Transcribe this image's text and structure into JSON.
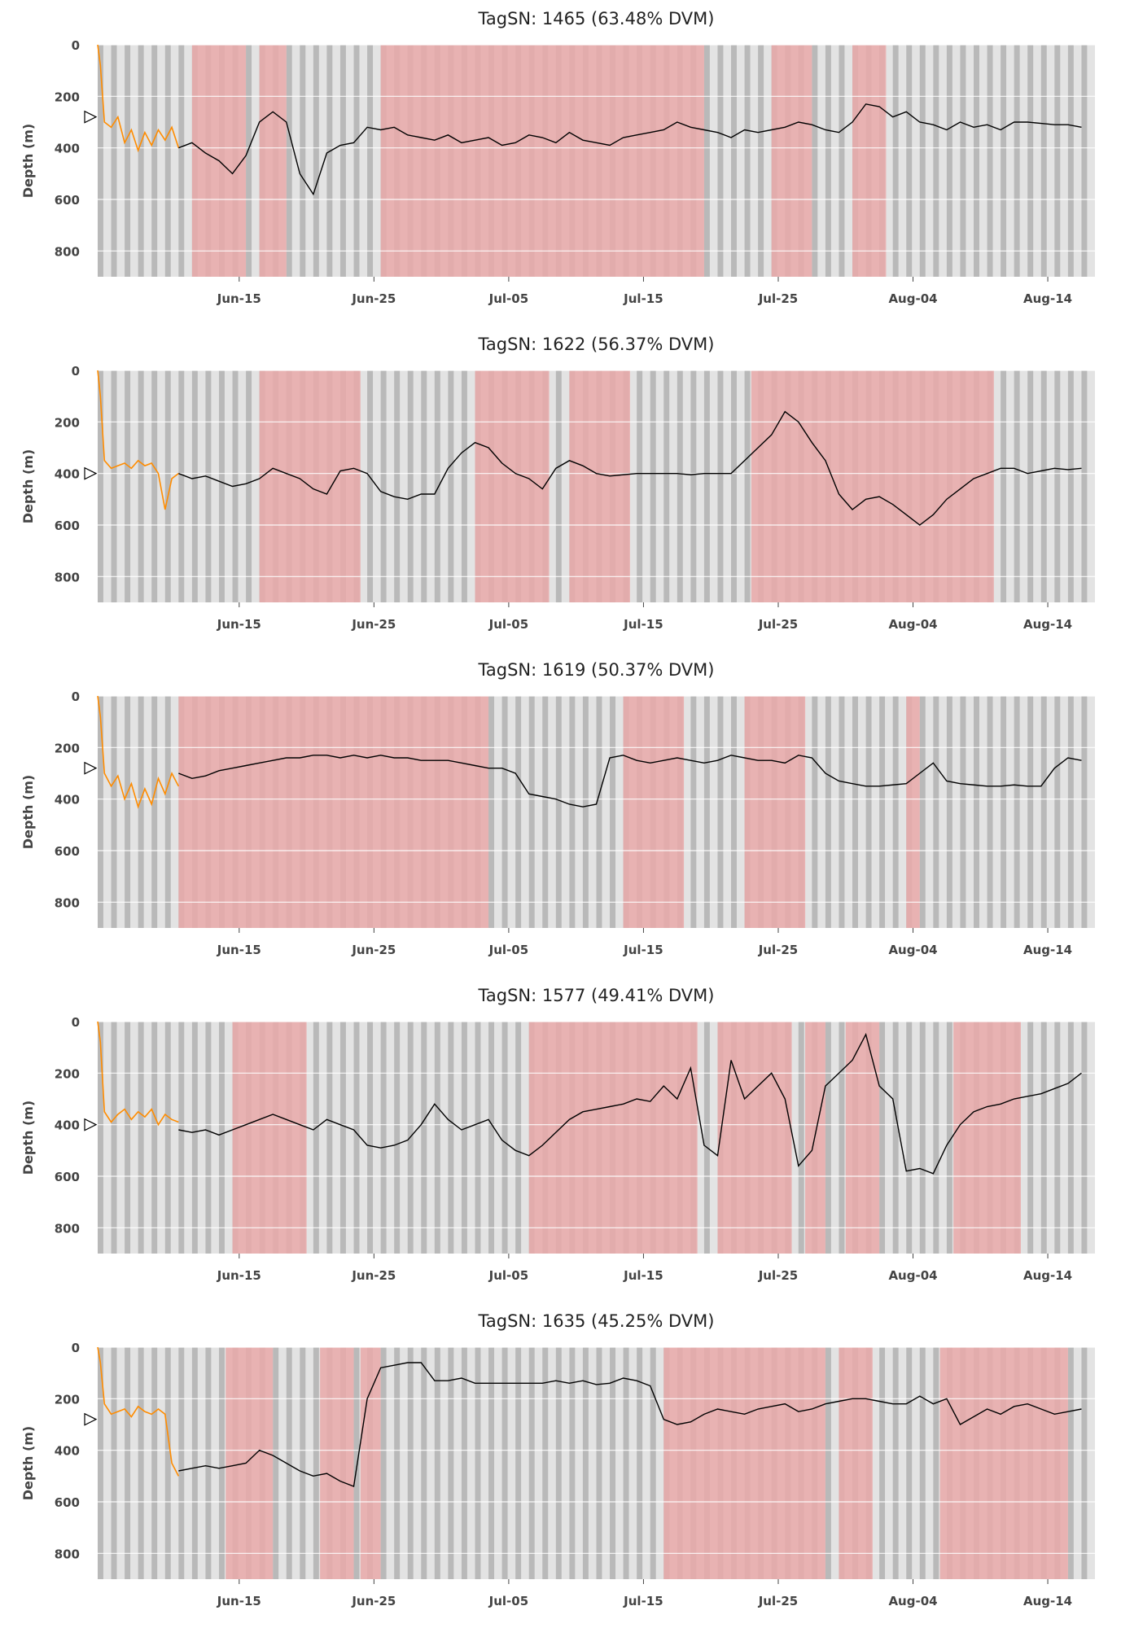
{
  "colors": {
    "background": "#ffffff",
    "night_stripe": "#b9b9b9",
    "day_stripe": "#e3e3e3",
    "dvm_shade": "#e9a9a9",
    "pre_release_trace": "#ff8c00",
    "trace": "#000000",
    "grid": "#ffffff",
    "text": "#444444"
  },
  "chart_data": [
    {
      "type": "line",
      "title": "TagSN: 1465 (63.48% DVM)",
      "ylabel": "Depth (m)",
      "ylim": [
        900,
        0
      ],
      "y_inverted": true,
      "yticks": [
        0,
        200,
        400,
        600,
        800
      ],
      "xticks": [
        "Jun-15",
        "Jun-25",
        "Jul-05",
        "Jul-15",
        "Jul-25",
        "Aug-04",
        "Aug-14"
      ],
      "marker_depth": 280,
      "pre_release": {
        "x": [
          0,
          0.2,
          0.5,
          1,
          1.5,
          2,
          2.5,
          3,
          3.5,
          4,
          4.5,
          5,
          5.5,
          6
        ],
        "depth": [
          0,
          80,
          300,
          320,
          280,
          380,
          330,
          410,
          340,
          390,
          330,
          370,
          320,
          400
        ]
      },
      "trace": {
        "x": [
          6,
          7,
          8,
          9,
          10,
          11,
          12,
          13,
          14,
          15,
          16,
          17,
          18,
          19,
          20,
          21,
          22,
          23,
          24,
          25,
          26,
          27,
          28,
          29,
          30,
          31,
          32,
          33,
          34,
          35,
          36,
          37,
          38,
          39,
          40,
          41,
          42,
          43,
          44,
          45,
          46,
          47,
          48,
          49,
          50,
          51,
          52,
          53,
          54,
          55,
          56,
          57,
          58,
          59,
          60,
          61,
          62,
          63,
          64,
          65,
          66,
          67,
          68,
          69,
          70,
          71,
          72,
          73
        ],
        "depth": [
          400,
          380,
          420,
          450,
          500,
          430,
          300,
          260,
          300,
          500,
          580,
          420,
          390,
          380,
          320,
          330,
          320,
          350,
          360,
          370,
          350,
          380,
          370,
          360,
          390,
          380,
          350,
          360,
          380,
          340,
          370,
          380,
          390,
          360,
          350,
          340,
          330,
          300,
          320,
          330,
          340,
          360,
          330,
          340,
          330,
          320,
          300,
          310,
          330,
          340,
          300,
          230,
          240,
          280,
          260,
          300,
          310,
          330,
          300,
          320,
          310,
          330,
          300,
          300,
          305,
          310,
          310,
          320
        ]
      },
      "dvm_periods": [
        [
          7,
          11
        ],
        [
          12,
          14
        ],
        [
          21,
          45
        ],
        [
          50,
          53
        ],
        [
          56,
          58.5
        ]
      ]
    },
    {
      "type": "line",
      "title": "TagSN: 1622 (56.37% DVM)",
      "ylabel": "Depth (m)",
      "ylim": [
        900,
        0
      ],
      "y_inverted": true,
      "yticks": [
        0,
        200,
        400,
        600,
        800
      ],
      "xticks": [
        "Jun-15",
        "Jun-25",
        "Jul-05",
        "Jul-15",
        "Jul-25",
        "Aug-04",
        "Aug-14"
      ],
      "marker_depth": 400,
      "pre_release": {
        "x": [
          0,
          0.2,
          0.5,
          1,
          1.5,
          2,
          2.5,
          3,
          3.5,
          4,
          4.5,
          5,
          5.5,
          6
        ],
        "depth": [
          0,
          100,
          350,
          380,
          370,
          360,
          380,
          350,
          370,
          360,
          400,
          540,
          420,
          400
        ]
      },
      "trace": {
        "x": [
          6,
          7,
          8,
          9,
          10,
          11,
          12,
          13,
          14,
          15,
          16,
          17,
          18,
          19,
          20,
          21,
          22,
          23,
          24,
          25,
          26,
          27,
          28,
          29,
          30,
          31,
          32,
          33,
          34,
          35,
          36,
          37,
          38,
          39,
          40,
          41,
          42,
          43,
          44,
          45,
          46,
          47,
          48,
          49,
          50,
          51,
          52,
          53,
          54,
          55,
          56,
          57,
          58,
          59,
          60,
          61,
          62,
          63,
          64,
          65,
          66,
          67,
          68,
          69,
          70,
          71,
          72,
          73
        ],
        "depth": [
          400,
          420,
          410,
          430,
          450,
          440,
          420,
          380,
          400,
          420,
          460,
          480,
          390,
          380,
          400,
          470,
          490,
          500,
          480,
          480,
          380,
          320,
          280,
          300,
          360,
          400,
          420,
          460,
          380,
          350,
          370,
          400,
          410,
          405,
          400,
          400,
          400,
          400,
          405,
          400,
          400,
          400,
          350,
          300,
          250,
          160,
          200,
          280,
          350,
          480,
          540,
          500,
          490,
          520,
          560,
          600,
          560,
          500,
          460,
          420,
          400,
          380,
          380,
          400,
          390,
          380,
          385,
          380
        ]
      },
      "dvm_periods": [
        [
          12,
          19.5
        ],
        [
          28,
          33.5
        ],
        [
          35,
          39.5
        ],
        [
          48.5,
          66.5
        ]
      ]
    },
    {
      "type": "line",
      "title": "TagSN: 1619 (50.37% DVM)",
      "ylabel": "Depth (m)",
      "ylim": [
        900,
        0
      ],
      "y_inverted": true,
      "yticks": [
        0,
        200,
        400,
        600,
        800
      ],
      "xticks": [
        "Jun-15",
        "Jun-25",
        "Jul-05",
        "Jul-15",
        "Jul-25",
        "Aug-04",
        "Aug-14"
      ],
      "marker_depth": 280,
      "pre_release": {
        "x": [
          0,
          0.2,
          0.5,
          1,
          1.5,
          2,
          2.5,
          3,
          3.5,
          4,
          4.5,
          5,
          5.5,
          6
        ],
        "depth": [
          0,
          80,
          300,
          350,
          310,
          400,
          340,
          430,
          360,
          420,
          320,
          380,
          300,
          350
        ]
      },
      "trace": {
        "x": [
          6,
          7,
          8,
          9,
          10,
          11,
          12,
          13,
          14,
          15,
          16,
          17,
          18,
          19,
          20,
          21,
          22,
          23,
          24,
          25,
          26,
          27,
          28,
          29,
          30,
          31,
          32,
          33,
          34,
          35,
          36,
          37,
          38,
          39,
          40,
          41,
          42,
          43,
          44,
          45,
          46,
          47,
          48,
          49,
          50,
          51,
          52,
          53,
          54,
          55,
          56,
          57,
          58,
          59,
          60,
          61,
          62,
          63,
          64,
          65,
          66,
          67,
          68,
          69,
          70,
          71,
          72,
          73
        ],
        "depth": [
          300,
          320,
          310,
          290,
          280,
          270,
          260,
          250,
          240,
          240,
          230,
          230,
          240,
          230,
          240,
          230,
          240,
          240,
          250,
          250,
          250,
          260,
          270,
          280,
          280,
          300,
          380,
          390,
          400,
          420,
          430,
          420,
          240,
          230,
          250,
          260,
          250,
          240,
          250,
          260,
          250,
          230,
          240,
          250,
          250,
          260,
          230,
          240,
          300,
          330,
          340,
          350,
          350,
          345,
          340,
          300,
          260,
          330,
          340,
          345,
          350,
          350,
          345,
          350,
          350,
          280,
          240,
          250
        ]
      },
      "dvm_periods": [
        [
          6,
          29
        ],
        [
          39,
          43.5
        ],
        [
          48,
          52.5
        ],
        [
          60,
          61
        ]
      ]
    },
    {
      "type": "line",
      "title": "TagSN: 1577 (49.41% DVM)",
      "ylabel": "Depth (m)",
      "ylim": [
        900,
        0
      ],
      "y_inverted": true,
      "yticks": [
        0,
        200,
        400,
        600,
        800
      ],
      "xticks": [
        "Jun-15",
        "Jun-25",
        "Jul-05",
        "Jul-15",
        "Jul-25",
        "Aug-04",
        "Aug-14"
      ],
      "marker_depth": 400,
      "pre_release": {
        "x": [
          0,
          0.2,
          0.5,
          1,
          1.5,
          2,
          2.5,
          3,
          3.5,
          4,
          4.5,
          5,
          5.5,
          6
        ],
        "depth": [
          0,
          80,
          350,
          390,
          360,
          340,
          380,
          350,
          370,
          340,
          400,
          360,
          380,
          390
        ]
      },
      "trace": {
        "x": [
          6,
          7,
          8,
          9,
          10,
          11,
          12,
          13,
          14,
          15,
          16,
          17,
          18,
          19,
          20,
          21,
          22,
          23,
          24,
          25,
          26,
          27,
          28,
          29,
          30,
          31,
          32,
          33,
          34,
          35,
          36,
          37,
          38,
          39,
          40,
          41,
          42,
          43,
          44,
          45,
          46,
          47,
          48,
          49,
          50,
          51,
          52,
          53,
          54,
          55,
          56,
          57,
          58,
          59,
          60,
          61,
          62,
          63,
          64,
          65,
          66,
          67,
          68,
          69,
          70,
          71,
          72,
          73
        ],
        "depth": [
          420,
          430,
          420,
          440,
          420,
          400,
          380,
          360,
          380,
          400,
          420,
          380,
          400,
          420,
          480,
          490,
          480,
          460,
          400,
          320,
          380,
          420,
          400,
          380,
          460,
          500,
          520,
          480,
          430,
          380,
          350,
          340,
          330,
          320,
          300,
          310,
          250,
          300,
          180,
          480,
          520,
          150,
          300,
          250,
          200,
          300,
          560,
          500,
          250,
          200,
          150,
          50,
          250,
          300,
          580,
          570,
          590,
          480,
          400,
          350,
          330,
          320,
          300,
          290,
          280,
          260,
          240,
          200
        ]
      },
      "dvm_periods": [
        [
          10,
          15.5
        ],
        [
          32,
          44.5
        ],
        [
          46,
          51.5
        ],
        [
          52.5,
          54
        ],
        [
          55.5,
          58
        ],
        [
          63.5,
          68.5
        ]
      ]
    },
    {
      "type": "line",
      "title": "TagSN: 1635 (45.25% DVM)",
      "ylabel": "Depth (m)",
      "ylim": [
        900,
        0
      ],
      "y_inverted": true,
      "yticks": [
        0,
        200,
        400,
        600,
        800
      ],
      "xticks": [
        "Jun-15",
        "Jun-25",
        "Jul-05",
        "Jul-15",
        "Jul-25",
        "Aug-04",
        "Aug-14"
      ],
      "marker_depth": 280,
      "pre_release": {
        "x": [
          0,
          0.2,
          0.5,
          1,
          1.5,
          2,
          2.5,
          3,
          3.5,
          4,
          4.5,
          5,
          5.5,
          6
        ],
        "depth": [
          0,
          60,
          220,
          260,
          250,
          240,
          270,
          230,
          250,
          260,
          240,
          260,
          450,
          500
        ]
      },
      "trace": {
        "x": [
          6,
          7,
          8,
          9,
          10,
          11,
          12,
          13,
          14,
          15,
          16,
          17,
          18,
          19,
          20,
          21,
          22,
          23,
          24,
          25,
          26,
          27,
          28,
          29,
          30,
          31,
          32,
          33,
          34,
          35,
          36,
          37,
          38,
          39,
          40,
          41,
          42,
          43,
          44,
          45,
          46,
          47,
          48,
          49,
          50,
          51,
          52,
          53,
          54,
          55,
          56,
          57,
          58,
          59,
          60,
          61,
          62,
          63,
          64,
          65,
          66,
          67,
          68,
          69,
          70,
          71,
          72,
          73
        ],
        "depth": [
          480,
          470,
          460,
          470,
          460,
          450,
          400,
          420,
          450,
          480,
          500,
          490,
          520,
          540,
          200,
          80,
          70,
          60,
          60,
          130,
          130,
          120,
          140,
          140,
          140,
          140,
          140,
          140,
          130,
          140,
          130,
          145,
          140,
          120,
          130,
          150,
          280,
          300,
          290,
          260,
          240,
          250,
          260,
          240,
          230,
          220,
          250,
          240,
          220,
          210,
          200,
          200,
          210,
          220,
          220,
          190,
          220,
          200,
          300,
          270,
          240,
          260,
          230,
          220,
          240,
          260,
          250,
          240
        ]
      },
      "dvm_periods": [
        [
          9.5,
          13
        ],
        [
          16.5,
          19
        ],
        [
          19.5,
          21
        ],
        [
          42,
          54
        ],
        [
          55,
          57.5
        ],
        [
          62.5,
          72
        ]
      ]
    }
  ]
}
